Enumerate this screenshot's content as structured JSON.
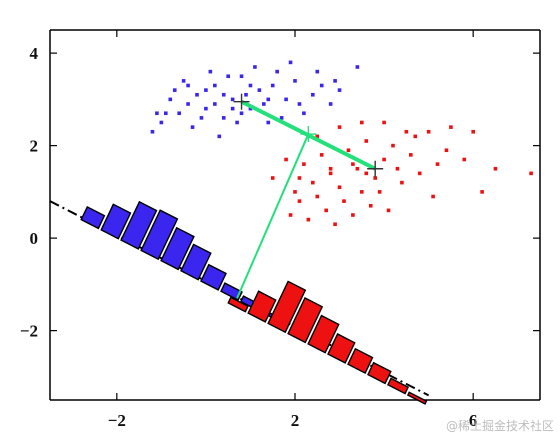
{
  "chart_data": {
    "type": "scatter",
    "xlim": [
      -3.5,
      7.5
    ],
    "ylim": [
      -3.5,
      4.5
    ],
    "x_ticks": [
      -2,
      2,
      6
    ],
    "y_ticks": [
      4,
      2,
      0,
      -2
    ],
    "x_tick_labels": [
      "−2",
      "2",
      "6"
    ],
    "y_tick_labels": [
      "4",
      "2",
      "0",
      "−2"
    ],
    "grid": false,
    "legend": "none",
    "colors": {
      "blue": "#3a26ee",
      "red": "#ee1111",
      "green": "#22e07a",
      "axis_line": "#000000"
    },
    "blue_points": [
      [
        -0.8,
        3.0
      ],
      [
        -0.6,
        2.7
      ],
      [
        -0.4,
        2.9
      ],
      [
        -0.2,
        3.1
      ],
      [
        0.0,
        2.8
      ],
      [
        0.2,
        3.3
      ],
      [
        0.4,
        2.6
      ],
      [
        0.6,
        3.0
      ],
      [
        0.8,
        3.5
      ],
      [
        1.0,
        2.8
      ],
      [
        1.2,
        3.2
      ],
      [
        1.4,
        2.5
      ],
      [
        1.6,
        3.6
      ],
      [
        1.8,
        3.0
      ],
      [
        2.0,
        3.4
      ],
      [
        2.2,
        2.7
      ],
      [
        2.4,
        3.1
      ],
      [
        2.6,
        3.3
      ],
      [
        2.8,
        2.9
      ],
      [
        3.0,
        3.2
      ],
      [
        -0.5,
        3.4
      ],
      [
        -0.3,
        2.4
      ],
      [
        0.1,
        3.6
      ],
      [
        0.3,
        2.2
      ],
      [
        0.5,
        3.5
      ],
      [
        0.7,
        2.5
      ],
      [
        0.9,
        3.1
      ],
      [
        1.1,
        3.7
      ],
      [
        1.3,
        2.9
      ],
      [
        1.5,
        3.3
      ],
      [
        -1.0,
        2.5
      ],
      [
        -1.2,
        2.3
      ],
      [
        -0.9,
        2.7
      ],
      [
        -0.7,
        3.2
      ],
      [
        -0.1,
        2.6
      ],
      [
        0.6,
        2.8
      ],
      [
        1.7,
        2.6
      ],
      [
        2.1,
        2.9
      ],
      [
        2.5,
        3.6
      ],
      [
        3.4,
        3.7
      ],
      [
        1.0,
        3.3
      ],
      [
        0.2,
        2.9
      ],
      [
        -0.4,
        3.3
      ],
      [
        1.4,
        3.0
      ],
      [
        0.8,
        2.7
      ],
      [
        -1.1,
        2.7
      ],
      [
        2.9,
        3.4
      ],
      [
        1.9,
        3.8
      ],
      [
        0.0,
        3.2
      ],
      [
        0.4,
        3.1
      ]
    ],
    "red_points": [
      [
        1.5,
        1.3
      ],
      [
        1.8,
        1.7
      ],
      [
        2.0,
        1.0
      ],
      [
        2.2,
        1.6
      ],
      [
        2.4,
        1.2
      ],
      [
        2.6,
        1.8
      ],
      [
        2.8,
        1.4
      ],
      [
        3.0,
        1.1
      ],
      [
        3.2,
        1.9
      ],
      [
        3.4,
        1.5
      ],
      [
        3.6,
        2.1
      ],
      [
        3.8,
        1.3
      ],
      [
        4.0,
        1.7
      ],
      [
        4.2,
        2.0
      ],
      [
        4.4,
        1.2
      ],
      [
        4.6,
        1.8
      ],
      [
        4.8,
        1.4
      ],
      [
        5.0,
        2.3
      ],
      [
        5.2,
        1.6
      ],
      [
        5.4,
        1.9
      ],
      [
        1.9,
        0.5
      ],
      [
        2.1,
        0.8
      ],
      [
        2.3,
        0.4
      ],
      [
        2.5,
        0.9
      ],
      [
        2.7,
        0.6
      ],
      [
        2.9,
        0.3
      ],
      [
        3.1,
        0.8
      ],
      [
        3.3,
        0.5
      ],
      [
        3.5,
        1.0
      ],
      [
        3.7,
        0.7
      ],
      [
        2.5,
        2.2
      ],
      [
        3.0,
        2.4
      ],
      [
        3.5,
        2.5
      ],
      [
        4.0,
        2.5
      ],
      [
        4.5,
        2.3
      ],
      [
        5.5,
        2.4
      ],
      [
        6.0,
        2.3
      ],
      [
        6.5,
        1.5
      ],
      [
        7.3,
        1.4
      ],
      [
        6.2,
        1.0
      ],
      [
        2.8,
        1.5
      ],
      [
        3.3,
        1.6
      ],
      [
        3.9,
        1.0
      ],
      [
        4.3,
        1.5
      ],
      [
        4.7,
        2.2
      ],
      [
        5.8,
        1.7
      ],
      [
        5.1,
        0.9
      ],
      [
        2.1,
        1.3
      ],
      [
        3.6,
        1.4
      ],
      [
        4.1,
        0.6
      ]
    ],
    "means_and_projection": {
      "blue_mean": [
        0.8,
        2.95
      ],
      "red_mean": [
        3.8,
        1.5
      ],
      "mid_mean": [
        2.3,
        2.25
      ],
      "direction_line_start": [
        0.8,
        2.95
      ],
      "direction_line_end": [
        3.8,
        1.5
      ],
      "projection_line_from": [
        2.3,
        2.25
      ],
      "projection_line_to": [
        0.7,
        -1.3
      ]
    },
    "projection_axis": {
      "start": [
        -3.5,
        0.8
      ],
      "end": [
        5.0,
        -3.4
      ],
      "slope": -0.4941
    },
    "histogram_bins_blue": [
      0.28,
      0.56,
      0.84,
      0.88,
      0.72,
      0.58,
      0.36,
      0.18,
      0.12,
      0.06
    ],
    "histogram_bins_red": [
      0.12,
      0.48,
      0.92,
      0.78,
      0.62,
      0.44,
      0.34,
      0.26,
      0.14,
      0.06
    ],
    "histogram_blue_start": [
      -2.8,
      0.4
    ],
    "histogram_red_start": [
      0.5,
      -1.4
    ],
    "histogram_bin_step": 0.5
  },
  "watermark": "@稀土掘金技术社区"
}
